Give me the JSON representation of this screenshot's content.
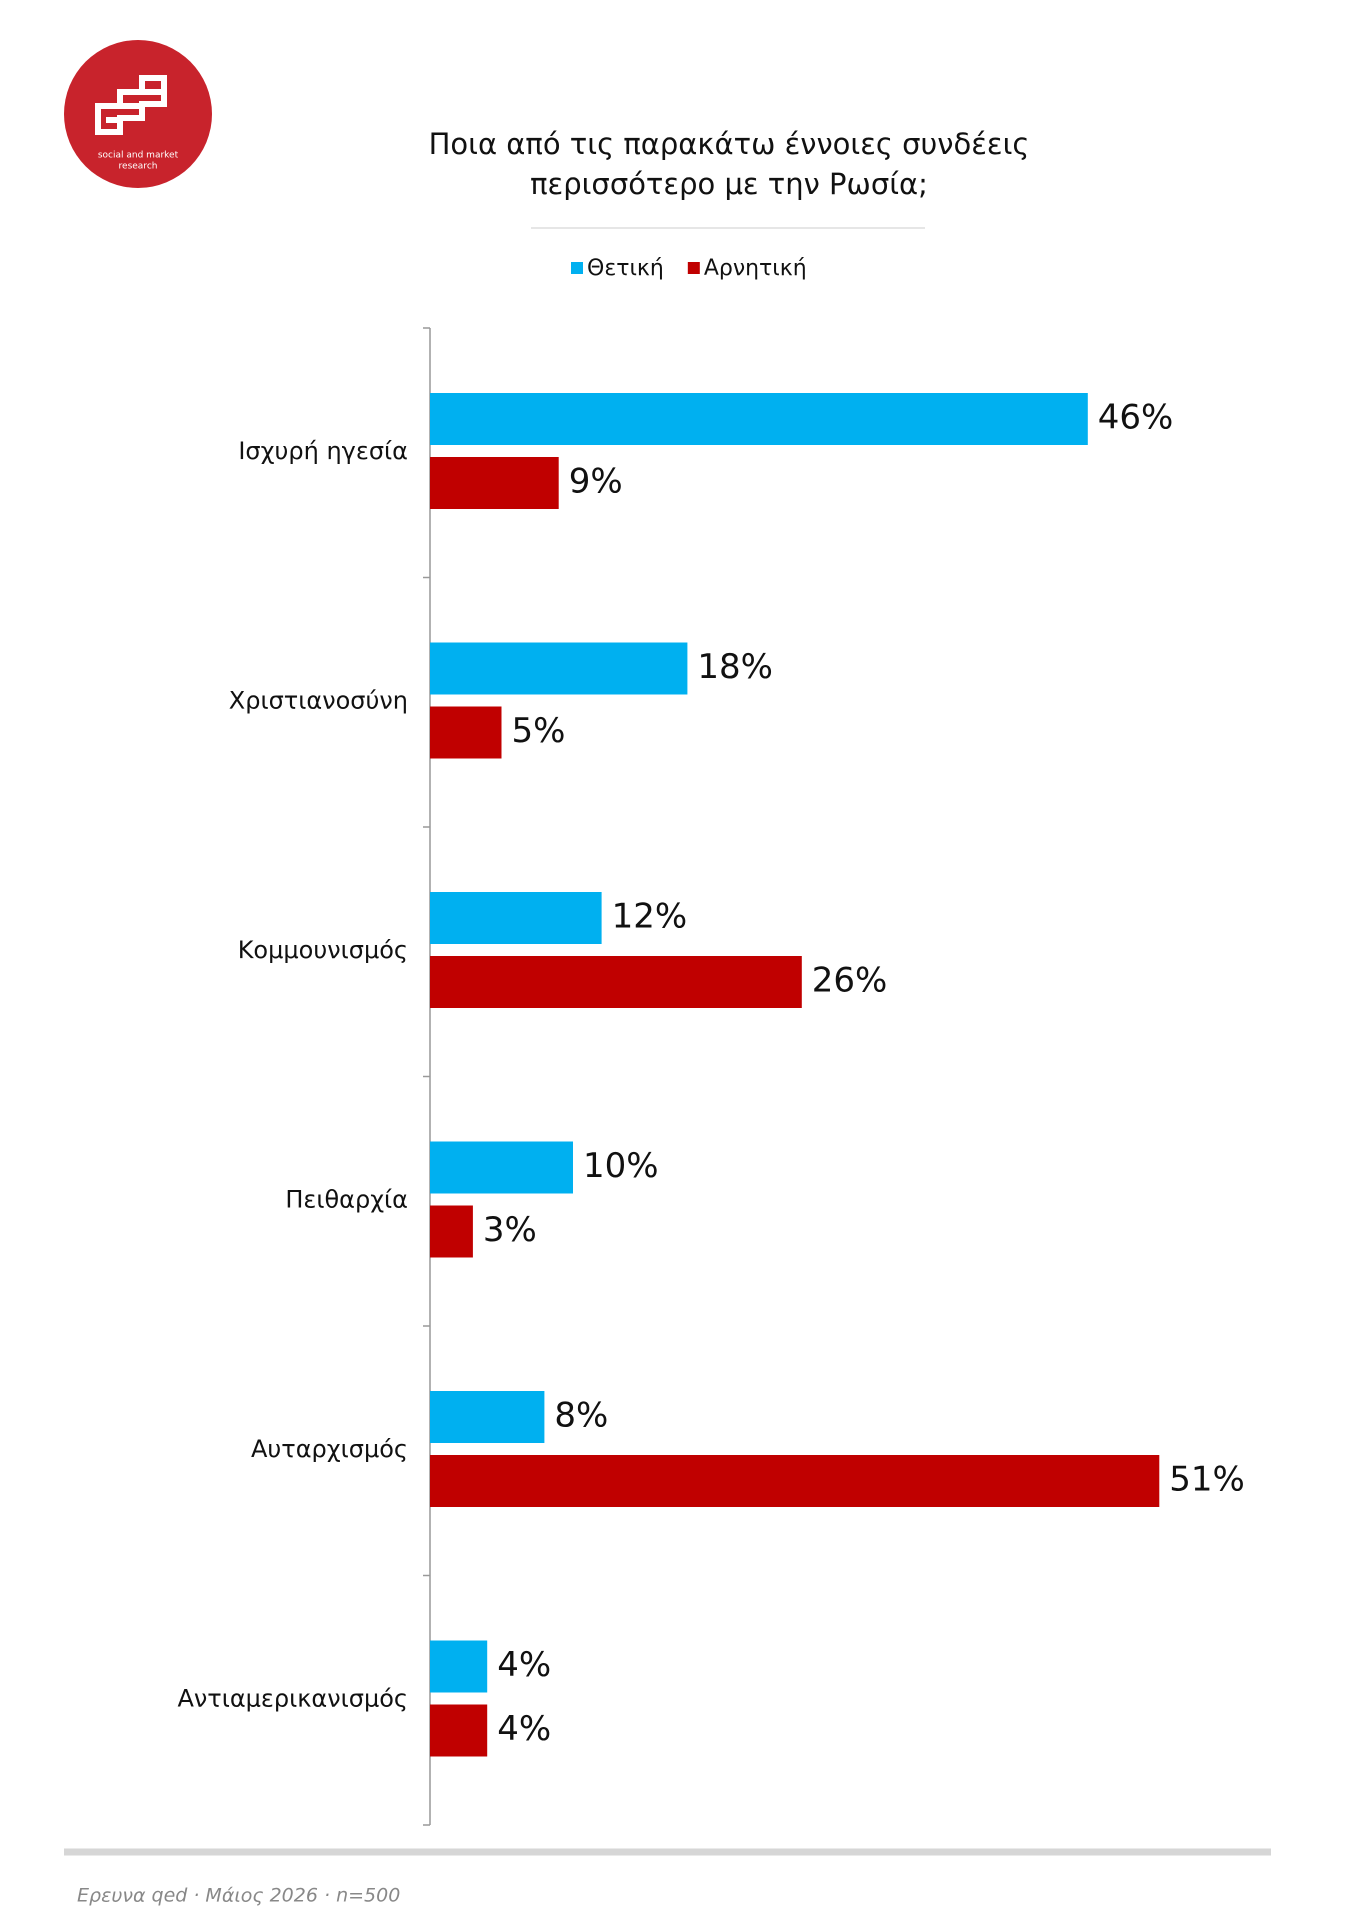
{
  "logo_text": [
    "social and market",
    "research"
  ],
  "chart_data": {
    "type": "bar",
    "orientation": "horizontal",
    "title": [
      "Ποια από τις παρακάτω έννοιες συνδέεις",
      "περισσότερο με την Ρωσία;"
    ],
    "categories": [
      "Ισχυρή ηγεσία",
      "Χριστιανοσύνη",
      "Κομμουνισμός",
      "Πειθαρχία",
      "Αυταρχισμός",
      "Αντιαμερικανισμός"
    ],
    "series": [
      {
        "name": "Θετική",
        "color": "#00b0f0",
        "values": [
          46,
          18,
          12,
          10,
          8,
          4
        ],
        "value_labels": [
          "46%",
          "18%",
          "12%",
          "10%",
          "8%",
          "4%"
        ]
      },
      {
        "name": "Αρνητική",
        "color": "#c00000",
        "values": [
          9,
          5,
          26,
          3,
          51,
          4
        ],
        "value_labels": [
          "9%",
          "5%",
          "26%",
          "3%",
          "51%",
          "4%"
        ]
      }
    ],
    "legend": "top"
  },
  "footer": "Ερευνα qed · Μάιος 2026 · n=500"
}
